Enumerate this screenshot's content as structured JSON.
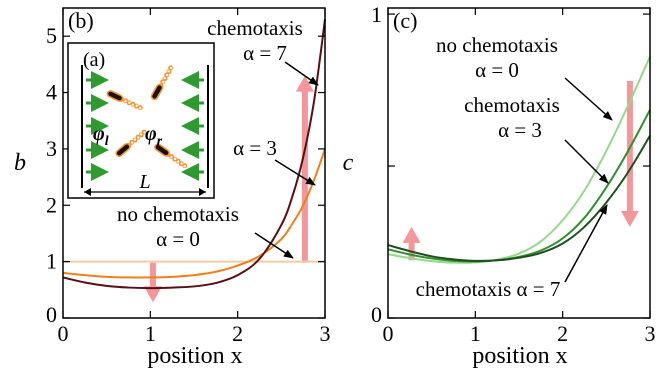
{
  "chart_data": [
    {
      "type": "line",
      "panel_label": "(b)",
      "xlabel": "position x",
      "ylabel": "b",
      "xlim": [
        0,
        3
      ],
      "ylim": [
        0,
        5.5
      ],
      "x_ticks": [
        0,
        1,
        2,
        3
      ],
      "y_ticks": [
        0,
        1,
        2,
        3,
        4,
        5
      ],
      "x_tick_labels": [
        "0",
        "1",
        "2",
        "3"
      ],
      "y_tick_labels": [
        "0",
        "1",
        "2",
        "3",
        "4",
        "5"
      ],
      "series": [
        {
          "color": "#f5c9a8",
          "x": [
            0,
            0.5,
            1,
            1.5,
            2,
            2.5,
            3
          ],
          "y": [
            1,
            1,
            1,
            1,
            1,
            1,
            1
          ]
        },
        {
          "color": "#f07f1e",
          "x": [
            0,
            0.25,
            0.5,
            0.75,
            1,
            1.25,
            1.5,
            1.75,
            2,
            2.25,
            2.5,
            2.625,
            2.75,
            2.875,
            3
          ],
          "y": [
            0.8,
            0.76,
            0.73,
            0.72,
            0.72,
            0.73,
            0.76,
            0.82,
            0.93,
            1.1,
            1.4,
            1.67,
            2.0,
            2.45,
            3.0
          ]
        },
        {
          "color": "#5a0f14",
          "x": [
            0,
            0.25,
            0.5,
            0.75,
            1,
            1.25,
            1.5,
            1.75,
            2,
            2.25,
            2.5,
            2.625,
            2.75,
            2.875,
            3
          ],
          "y": [
            0.72,
            0.63,
            0.57,
            0.54,
            0.53,
            0.54,
            0.56,
            0.62,
            0.76,
            1.05,
            1.65,
            2.15,
            2.85,
            3.85,
            5.3
          ]
        }
      ],
      "annotations": [
        {
          "lines": [
            "chemotaxis",
            "α = 7"
          ],
          "target": [
            2.9,
            4.1
          ]
        },
        {
          "lines": [
            "α = 3"
          ],
          "target": [
            2.83,
            2.2
          ]
        },
        {
          "lines": [
            "no chemotaxis",
            "α = 0"
          ],
          "target": [
            2.68,
            1.0
          ]
        }
      ],
      "arrows": [
        {
          "color": "#f4979a",
          "x": 2.77,
          "from": 0.98,
          "to": 4.3
        },
        {
          "color": "#f4979a",
          "x": 1.03,
          "from": 0.98,
          "to": 0.28
        }
      ],
      "inset": {
        "panel_label": "(a)",
        "phi_l_base": "φ",
        "phi_l_sub": "l",
        "phi_r_base": "φ",
        "phi_r_sub": "r",
        "length_label": "L",
        "arrow_color": "#2f9a2f",
        "bacteria_color": "#f4922f"
      }
    },
    {
      "type": "line",
      "panel_label": "(c)",
      "xlabel": "position x",
      "ylabel": "c",
      "xlim": [
        0,
        3
      ],
      "ylim": [
        0,
        1.02
      ],
      "x_ticks": [
        0,
        1,
        2,
        3
      ],
      "y_ticks": [
        0,
        1
      ],
      "x_tick_labels": [
        "0",
        "1",
        "2",
        "3"
      ],
      "y_tick_labels": [
        "0",
        "1"
      ],
      "series": [
        {
          "color": "#93d98c",
          "x": [
            0,
            0.25,
            0.5,
            0.75,
            1,
            1.25,
            1.5,
            1.75,
            2,
            2.25,
            2.5,
            2.75,
            3
          ],
          "y": [
            0.21,
            0.197,
            0.187,
            0.182,
            0.183,
            0.192,
            0.212,
            0.252,
            0.322,
            0.42,
            0.55,
            0.7,
            0.86
          ]
        },
        {
          "color": "#2f8f2f",
          "x": [
            0,
            0.25,
            0.5,
            0.75,
            1,
            1.25,
            1.5,
            1.75,
            2,
            2.25,
            2.5,
            2.75,
            3
          ],
          "y": [
            0.226,
            0.209,
            0.196,
            0.188,
            0.186,
            0.19,
            0.201,
            0.222,
            0.262,
            0.33,
            0.43,
            0.55,
            0.685
          ]
        },
        {
          "color": "#1f4f1f",
          "x": [
            0,
            0.25,
            0.5,
            0.75,
            1,
            1.25,
            1.5,
            1.75,
            2,
            2.25,
            2.5,
            2.75,
            3
          ],
          "y": [
            0.24,
            0.22,
            0.203,
            0.193,
            0.188,
            0.19,
            0.198,
            0.214,
            0.245,
            0.3,
            0.38,
            0.48,
            0.6
          ]
        }
      ],
      "annotations": [
        {
          "lines": [
            "no chemotaxis",
            "α = 0"
          ],
          "target": [
            2.63,
            0.68
          ]
        },
        {
          "lines": [
            "chemotaxis",
            "α = 3"
          ],
          "target": [
            2.6,
            0.43
          ]
        },
        {
          "lines": [
            "chemotaxis α = 7"
          ],
          "target": [
            2.62,
            0.39
          ]
        }
      ],
      "arrows": [
        {
          "color": "#f4979a",
          "x": 2.77,
          "from": 0.78,
          "to": 0.3
        },
        {
          "color": "#f4979a",
          "x": 0.27,
          "from": 0.19,
          "to": 0.3
        }
      ]
    }
  ]
}
